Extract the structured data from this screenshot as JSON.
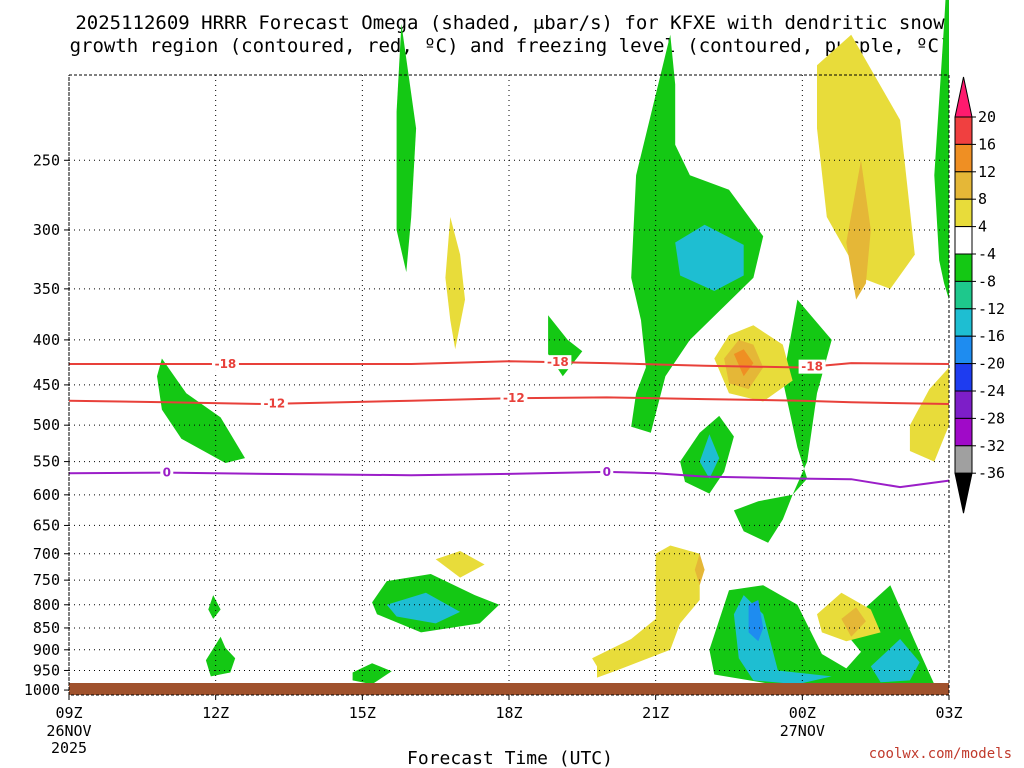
{
  "chart_data": {
    "type": "contour",
    "title_line1": "2025112609 HRRR Forecast Omega (shaded, μbar/s) for KFXE with dendritic snow",
    "title_line2": "growth region (contoured, red, ºC) and freezing level (contoured, purple, ºC)",
    "xlabel": "Forecast Time (UTC)",
    "credit": "coolwx.com/models",
    "x_ticks": [
      {
        "hour": 0,
        "label": "09Z",
        "sub1": "26NOV",
        "sub2": "2025"
      },
      {
        "hour": 3,
        "label": "12Z"
      },
      {
        "hour": 6,
        "label": "15Z"
      },
      {
        "hour": 9,
        "label": "18Z"
      },
      {
        "hour": 12,
        "label": "21Z"
      },
      {
        "hour": 15,
        "label": "00Z",
        "sub1": "27NOV"
      },
      {
        "hour": 18,
        "label": "03Z"
      }
    ],
    "y_ticks": [
      250,
      300,
      350,
      400,
      450,
      500,
      550,
      600,
      650,
      700,
      750,
      800,
      850,
      900,
      950,
      1000
    ],
    "y_range_mb": [
      200,
      1013
    ],
    "x_range_hours": [
      0,
      18
    ],
    "colorbar": {
      "labels": [
        "20",
        "16",
        "12",
        "8",
        "4",
        "-4",
        "-8",
        "-12",
        "-16",
        "-20",
        "-24",
        "-28",
        "-32",
        "-36"
      ],
      "colors": [
        "#ff1a6e",
        "#f04040",
        "#ef8f23",
        "#e5b737",
        "#e8dc3a",
        "#ffffff",
        "#14c814",
        "#1ec88c",
        "#1ebed2",
        "#1e8cf0",
        "#1e3cf0",
        "#7d1ec8",
        "#a00ac8",
        "#a0a0a0",
        "#000000"
      ]
    },
    "isotherms": [
      {
        "name": "dgz_top",
        "temp_c": -18,
        "label": "-18",
        "color": "#e8403a",
        "points": [
          [
            0,
            426
          ],
          [
            2,
            426
          ],
          [
            4,
            426
          ],
          [
            7,
            426
          ],
          [
            9,
            423
          ],
          [
            11,
            425
          ],
          [
            13,
            428
          ],
          [
            15,
            430
          ],
          [
            16,
            425
          ],
          [
            18,
            426
          ]
        ],
        "label_hours": [
          3.2,
          10,
          15.2
        ]
      },
      {
        "name": "dgz_bottom",
        "temp_c": -12,
        "label": "-12",
        "color": "#e8403a",
        "points": [
          [
            0,
            469
          ],
          [
            2,
            471
          ],
          [
            4,
            473
          ],
          [
            7,
            469
          ],
          [
            9,
            466
          ],
          [
            11,
            465
          ],
          [
            13,
            467
          ],
          [
            15,
            469
          ],
          [
            16,
            471
          ],
          [
            18,
            473
          ]
        ],
        "label_hours": [
          4.2,
          9.1
        ]
      },
      {
        "name": "freezing_level",
        "temp_c": 0,
        "label": "0",
        "color": "#9b1ec8",
        "points": [
          [
            0,
            567
          ],
          [
            2,
            566
          ],
          [
            4,
            568
          ],
          [
            7,
            570
          ],
          [
            9,
            568
          ],
          [
            11,
            565
          ],
          [
            12,
            567
          ],
          [
            13,
            572
          ],
          [
            15,
            575
          ],
          [
            16,
            576
          ],
          [
            17,
            588
          ],
          [
            17.5,
            583
          ],
          [
            18,
            578
          ]
        ],
        "label_hours": [
          2,
          11
        ]
      }
    ],
    "omega_regions": [
      {
        "value": -5,
        "pts": [
          [
            1.9,
            420
          ],
          [
            2.4,
            460
          ],
          [
            3.1,
            490
          ],
          [
            3.6,
            545
          ],
          [
            3.2,
            552
          ],
          [
            2.3,
            518
          ],
          [
            1.9,
            480
          ],
          [
            1.8,
            440
          ]
        ]
      },
      {
        "value": -5,
        "pts": [
          [
            6.8,
            175
          ],
          [
            7.1,
            230
          ],
          [
            7.0,
            290
          ],
          [
            6.9,
            335
          ],
          [
            6.7,
            300
          ],
          [
            6.7,
            220
          ]
        ]
      },
      {
        "value": -5,
        "pts": [
          [
            9.8,
            375
          ],
          [
            10.2,
            400
          ],
          [
            10.5,
            412
          ],
          [
            10.1,
            440
          ],
          [
            9.8,
            415
          ]
        ]
      },
      {
        "value": -5,
        "pts": [
          [
            11.8,
            430
          ],
          [
            11.7,
            380
          ],
          [
            11.5,
            340
          ],
          [
            11.6,
            260
          ],
          [
            12.3,
            180
          ],
          [
            12.4,
            205
          ],
          [
            12.4,
            240
          ],
          [
            12.7,
            260
          ],
          [
            13.5,
            270
          ],
          [
            14.2,
            305
          ],
          [
            14.0,
            340
          ],
          [
            12.7,
            400
          ],
          [
            12.2,
            440
          ],
          [
            11.9,
            510
          ],
          [
            11.5,
            502
          ],
          [
            11.6,
            460
          ]
        ]
      },
      {
        "value": -5,
        "pts": [
          [
            12.5,
            550
          ],
          [
            12.9,
            510
          ],
          [
            13.3,
            488
          ],
          [
            13.6,
            515
          ],
          [
            13.4,
            565
          ],
          [
            13.1,
            598
          ],
          [
            12.6,
            580
          ]
        ]
      },
      {
        "value": -5,
        "pts": [
          [
            13.6,
            625
          ],
          [
            14.1,
            610
          ],
          [
            14.8,
            600
          ],
          [
            15.1,
            575
          ],
          [
            14.9,
            530
          ],
          [
            14.6,
            445
          ],
          [
            14.9,
            360
          ],
          [
            15.6,
            400
          ],
          [
            15.3,
            460
          ],
          [
            15.1,
            550
          ],
          [
            14.8,
            600
          ],
          [
            14.6,
            640
          ],
          [
            14.3,
            680
          ],
          [
            13.8,
            660
          ]
        ]
      },
      {
        "value": -5,
        "pts": [
          [
            6.2,
            795
          ],
          [
            6.5,
            752
          ],
          [
            7.4,
            738
          ],
          [
            8.3,
            780
          ],
          [
            8.8,
            800
          ],
          [
            8.4,
            840
          ],
          [
            7.2,
            860
          ],
          [
            6.3,
            820
          ]
        ]
      },
      {
        "value": -5,
        "pts": [
          [
            5.8,
            955
          ],
          [
            6.2,
            932
          ],
          [
            6.6,
            952
          ],
          [
            6.2,
            985
          ],
          [
            5.8,
            975
          ]
        ]
      },
      {
        "value": -5,
        "pts": [
          [
            2.8,
            925
          ],
          [
            3.1,
            870
          ],
          [
            3.2,
            895
          ],
          [
            3.4,
            920
          ],
          [
            3.3,
            955
          ],
          [
            2.9,
            965
          ]
        ]
      },
      {
        "value": -5,
        "pts": [
          [
            2.85,
            810
          ],
          [
            2.95,
            780
          ],
          [
            3.1,
            810
          ],
          [
            2.95,
            830
          ]
        ]
      },
      {
        "value": -5,
        "pts": [
          [
            13.1,
            900
          ],
          [
            13.5,
            770
          ],
          [
            14.2,
            760
          ],
          [
            14.9,
            800
          ],
          [
            15.4,
            910
          ],
          [
            15.9,
            945
          ],
          [
            16.2,
            905
          ],
          [
            15.8,
            850
          ],
          [
            16.3,
            805
          ],
          [
            16.8,
            760
          ],
          [
            17.3,
            880
          ],
          [
            17.7,
            985
          ],
          [
            17.0,
            1000
          ],
          [
            15.8,
            990
          ],
          [
            14.4,
            985
          ],
          [
            13.2,
            960
          ]
        ]
      },
      {
        "value": -5,
        "pts": [
          [
            17.8,
            325
          ],
          [
            17.7,
            260
          ],
          [
            17.9,
            175
          ],
          [
            18.0,
            140
          ],
          [
            18.0,
            360
          ],
          [
            17.9,
            345
          ]
        ]
      },
      {
        "value": -12,
        "pts": [
          [
            12.4,
            310
          ],
          [
            13.0,
            296
          ],
          [
            13.8,
            312
          ],
          [
            13.8,
            338
          ],
          [
            13.2,
            352
          ],
          [
            12.5,
            338
          ]
        ]
      },
      {
        "value": -12,
        "pts": [
          [
            12.9,
            550
          ],
          [
            13.1,
            512
          ],
          [
            13.3,
            545
          ],
          [
            13.1,
            575
          ]
        ]
      },
      {
        "value": -12,
        "pts": [
          [
            6.5,
            800
          ],
          [
            7.3,
            775
          ],
          [
            8.0,
            815
          ],
          [
            7.5,
            840
          ],
          [
            6.7,
            825
          ]
        ]
      },
      {
        "value": -12,
        "pts": [
          [
            13.6,
            820
          ],
          [
            13.8,
            780
          ],
          [
            14.2,
            820
          ],
          [
            14.5,
            950
          ],
          [
            15.6,
            965
          ],
          [
            14.9,
            985
          ],
          [
            14.0,
            975
          ],
          [
            13.7,
            920
          ]
        ]
      },
      {
        "value": -12,
        "pts": [
          [
            16.4,
            940
          ],
          [
            17.0,
            875
          ],
          [
            17.4,
            930
          ],
          [
            17.2,
            975
          ],
          [
            16.6,
            980
          ]
        ]
      },
      {
        "value": -16,
        "pts": [
          [
            13.9,
            800
          ],
          [
            14.1,
            790
          ],
          [
            14.2,
            850
          ],
          [
            14.1,
            880
          ],
          [
            13.9,
            860
          ]
        ]
      },
      {
        "value": 5,
        "pts": [
          [
            7.8,
            290
          ],
          [
            8.0,
            320
          ],
          [
            8.1,
            360
          ],
          [
            7.9,
            410
          ],
          [
            7.8,
            380
          ],
          [
            7.7,
            340
          ]
        ]
      },
      {
        "value": 5,
        "pts": [
          [
            7.5,
            710
          ],
          [
            8.0,
            695
          ],
          [
            8.5,
            720
          ],
          [
            8.0,
            745
          ]
        ]
      },
      {
        "value": 5,
        "pts": [
          [
            10.7,
            920
          ],
          [
            11.5,
            875
          ],
          [
            12.0,
            830
          ],
          [
            12.0,
            700
          ],
          [
            12.3,
            685
          ],
          [
            12.9,
            700
          ],
          [
            12.9,
            790
          ],
          [
            12.5,
            840
          ],
          [
            12.3,
            900
          ],
          [
            11.2,
            950
          ],
          [
            10.8,
            968
          ],
          [
            10.8,
            940
          ]
        ]
      },
      {
        "value": 5,
        "pts": [
          [
            13.2,
            420
          ],
          [
            13.5,
            395
          ],
          [
            14.0,
            385
          ],
          [
            14.6,
            405
          ],
          [
            14.8,
            445
          ],
          [
            14.2,
            470
          ],
          [
            13.5,
            460
          ]
        ]
      },
      {
        "value": 5,
        "pts": [
          [
            15.3,
            820
          ],
          [
            15.8,
            775
          ],
          [
            16.4,
            810
          ],
          [
            16.6,
            860
          ],
          [
            15.9,
            880
          ],
          [
            15.4,
            860
          ]
        ]
      },
      {
        "value": 5,
        "pts": [
          [
            15.3,
            230
          ],
          [
            15.3,
            195
          ],
          [
            16.0,
            180
          ],
          [
            17.0,
            225
          ],
          [
            17.3,
            320
          ],
          [
            16.8,
            350
          ],
          [
            16.2,
            340
          ],
          [
            15.5,
            290
          ]
        ]
      },
      {
        "value": 5,
        "pts": [
          [
            17.2,
            535
          ],
          [
            17.2,
            500
          ],
          [
            17.6,
            455
          ],
          [
            18.0,
            430
          ],
          [
            18.0,
            500
          ],
          [
            17.7,
            550
          ]
        ]
      },
      {
        "value": 9,
        "pts": [
          [
            12.9,
            700
          ],
          [
            13.0,
            730
          ],
          [
            12.9,
            760
          ],
          [
            12.8,
            730
          ]
        ]
      },
      {
        "value": 9,
        "pts": [
          [
            13.4,
            420
          ],
          [
            13.7,
            400
          ],
          [
            14.0,
            405
          ],
          [
            14.2,
            430
          ],
          [
            13.9,
            455
          ],
          [
            13.5,
            448
          ]
        ]
      },
      {
        "value": 9,
        "pts": [
          [
            15.8,
            830
          ],
          [
            16.1,
            805
          ],
          [
            16.3,
            835
          ],
          [
            16.0,
            870
          ]
        ]
      },
      {
        "value": 9,
        "pts": [
          [
            15.9,
            310
          ],
          [
            16.2,
            250
          ],
          [
            16.4,
            300
          ],
          [
            16.3,
            345
          ],
          [
            16.1,
            360
          ]
        ]
      },
      {
        "value": 13,
        "pts": [
          [
            13.6,
            415
          ],
          [
            13.8,
            410
          ],
          [
            14.0,
            425
          ],
          [
            13.8,
            440
          ]
        ]
      }
    ]
  }
}
